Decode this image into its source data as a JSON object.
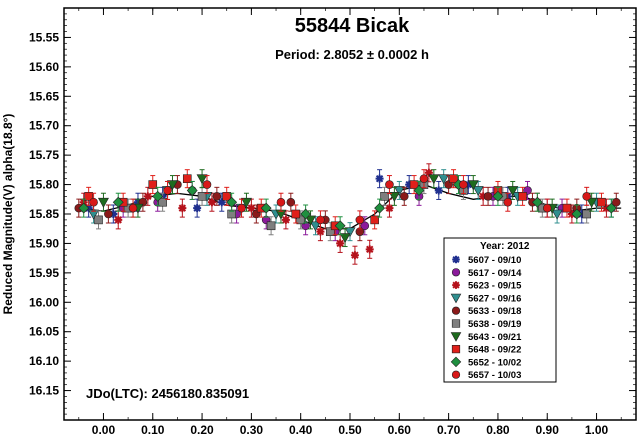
{
  "chart_data": {
    "type": "scatter",
    "title": "55844 Bicak",
    "subtitle": "Period: 2.8052 ± 0.0002 h",
    "xlabel": "",
    "ylabel": "Reduced Magnitude(V) alpha(18.8°)",
    "xlim": [
      -0.08,
      1.08
    ],
    "ylim": [
      15.5,
      16.2
    ],
    "y_inverted": true,
    "x_ticks": [
      "0.00",
      "0.10",
      "0.20",
      "0.30",
      "0.40",
      "0.50",
      "0.60",
      "0.70",
      "0.80",
      "0.90",
      "1.00"
    ],
    "y_ticks": [
      "15.55",
      "15.60",
      "15.65",
      "15.70",
      "15.75",
      "15.80",
      "15.85",
      "15.90",
      "15.95",
      "16.00",
      "16.05",
      "16.10",
      "16.15"
    ],
    "annotation": "JDo(LTC): 2456180.835091",
    "legend_title": "Year: 2012",
    "legend_position": "bottom-right",
    "fit_curve": {
      "color": "#000000",
      "x": [
        -0.05,
        0.0,
        0.05,
        0.1,
        0.15,
        0.2,
        0.25,
        0.3,
        0.35,
        0.4,
        0.45,
        0.5,
        0.55,
        0.6,
        0.65,
        0.7,
        0.75,
        0.8,
        0.85,
        0.9,
        0.95,
        1.0,
        1.05
      ],
      "y": [
        15.84,
        15.845,
        15.835,
        15.82,
        15.815,
        15.82,
        15.835,
        15.84,
        15.845,
        15.86,
        15.875,
        15.875,
        15.85,
        15.81,
        15.8,
        15.815,
        15.825,
        15.82,
        15.82,
        15.835,
        15.845,
        15.84,
        15.84
      ]
    },
    "series": [
      {
        "name": "5607 - 09/10",
        "color": "#1f2f8f",
        "marker": "asterisk",
        "x": [
          -0.03,
          0.02,
          0.07,
          0.12,
          0.19,
          0.24,
          0.56,
          0.62,
          0.68,
          0.74,
          0.82,
          0.9,
          0.97,
          1.03
        ],
        "y": [
          15.84,
          15.85,
          15.83,
          15.82,
          15.84,
          15.83,
          15.79,
          15.8,
          15.81,
          15.8,
          15.82,
          15.84,
          15.85,
          15.84
        ]
      },
      {
        "name": "5617 - 09/14",
        "color": "#8b1a9b",
        "marker": "circle",
        "x": [
          0.04,
          0.11,
          0.18,
          0.27,
          0.33,
          0.41,
          0.47,
          0.53,
          0.64,
          0.72,
          0.79,
          0.86,
          0.93
        ],
        "y": [
          15.84,
          15.83,
          15.81,
          15.85,
          15.86,
          15.87,
          15.88,
          15.87,
          15.82,
          15.8,
          15.82,
          15.81,
          15.84
        ]
      },
      {
        "name": "5623 - 09/15",
        "color": "#b5121b",
        "marker": "asterisk",
        "x": [
          -0.04,
          0.03,
          0.09,
          0.16,
          0.22,
          0.3,
          0.37,
          0.44,
          0.48,
          0.51,
          0.54,
          0.58,
          0.66,
          0.77,
          0.88,
          0.95,
          1.02
        ],
        "y": [
          15.83,
          15.86,
          15.82,
          15.84,
          15.83,
          15.84,
          15.86,
          15.88,
          15.9,
          15.92,
          15.91,
          15.84,
          15.78,
          15.82,
          15.83,
          15.85,
          15.84
        ]
      },
      {
        "name": "5627 - 09/16",
        "color": "#2f8f8f",
        "marker": "tri-down",
        "x": [
          -0.02,
          0.06,
          0.13,
          0.21,
          0.28,
          0.35,
          0.43,
          0.5,
          0.6,
          0.69,
          0.76,
          0.84,
          0.92,
          1.0
        ],
        "y": [
          15.85,
          15.84,
          15.81,
          15.82,
          15.84,
          15.85,
          15.87,
          15.88,
          15.81,
          15.79,
          15.81,
          15.82,
          15.85,
          15.83
        ]
      },
      {
        "name": "5633 - 09/18",
        "color": "#8b1a1a",
        "marker": "circle",
        "x": [
          -0.05,
          0.01,
          0.08,
          0.15,
          0.23,
          0.31,
          0.38,
          0.45,
          0.52,
          0.61,
          0.7,
          0.78,
          0.87,
          0.96,
          1.04
        ],
        "y": [
          15.84,
          15.85,
          15.83,
          15.8,
          15.82,
          15.85,
          15.83,
          15.86,
          15.88,
          15.82,
          15.8,
          15.82,
          15.83,
          15.84,
          15.83
        ]
      },
      {
        "name": "5638 - 09/19",
        "color": "#7f7f7f",
        "marker": "square",
        "x": [
          -0.01,
          0.05,
          0.12,
          0.2,
          0.26,
          0.34,
          0.4,
          0.46,
          0.57,
          0.65,
          0.73,
          0.81,
          0.89,
          0.98
        ],
        "y": [
          15.86,
          15.84,
          15.83,
          15.82,
          15.85,
          15.87,
          15.86,
          15.88,
          15.82,
          15.8,
          15.81,
          15.82,
          15.84,
          15.85
        ]
      },
      {
        "name": "5643 - 09/21",
        "color": "#1e6b1e",
        "marker": "tri-down",
        "x": [
          0.0,
          0.07,
          0.14,
          0.2,
          0.29,
          0.36,
          0.42,
          0.49,
          0.59,
          0.67,
          0.75,
          0.83,
          0.91,
          0.99
        ],
        "y": [
          15.83,
          15.84,
          15.8,
          15.79,
          15.83,
          15.85,
          15.86,
          15.89,
          15.82,
          15.79,
          15.8,
          15.81,
          15.84,
          15.83
        ]
      },
      {
        "name": "5648 - 09/22",
        "color": "#e0201a",
        "marker": "square",
        "x": [
          -0.03,
          0.04,
          0.1,
          0.17,
          0.25,
          0.32,
          0.39,
          0.47,
          0.55,
          0.63,
          0.71,
          0.8,
          0.85,
          0.94,
          1.01
        ],
        "y": [
          15.82,
          15.83,
          15.8,
          15.79,
          15.82,
          15.84,
          15.85,
          15.87,
          15.86,
          15.8,
          15.79,
          15.81,
          15.82,
          15.84,
          15.83
        ]
      },
      {
        "name": "5652 - 10/02",
        "color": "#1f8f3f",
        "marker": "diamond",
        "x": [
          -0.04,
          0.03,
          0.11,
          0.18,
          0.26,
          0.33,
          0.41,
          0.48,
          0.56,
          0.64,
          0.72,
          0.8,
          0.88,
          0.96,
          1.03
        ],
        "y": [
          15.84,
          15.83,
          15.82,
          15.81,
          15.83,
          15.84,
          15.85,
          15.87,
          15.84,
          15.81,
          15.8,
          15.82,
          15.83,
          15.85,
          15.84
        ]
      },
      {
        "name": "5657 - 10/03",
        "color": "#d81818",
        "marker": "circle",
        "x": [
          -0.02,
          0.06,
          0.13,
          0.21,
          0.28,
          0.36,
          0.44,
          0.52,
          0.58,
          0.65,
          0.73,
          0.82,
          0.9,
          0.98
        ],
        "y": [
          15.83,
          15.84,
          15.81,
          15.8,
          15.84,
          15.83,
          15.86,
          15.86,
          15.8,
          15.79,
          15.8,
          15.83,
          15.84,
          15.82
        ]
      }
    ]
  }
}
